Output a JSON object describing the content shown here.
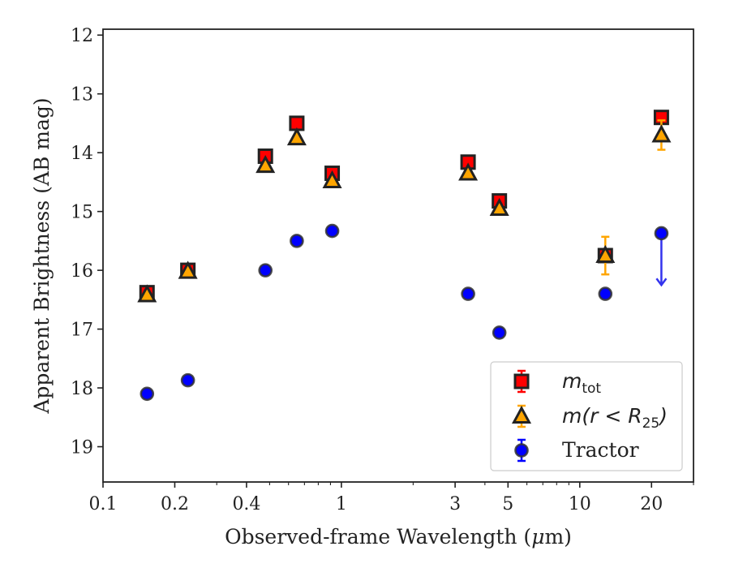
{
  "chart_data": {
    "type": "scatter",
    "xlabel_prefix": "Observed-frame Wavelength (",
    "xlabel_symbol": "μ",
    "xlabel_suffix": "m)",
    "ylabel": "Apparent Brightness (AB mag)",
    "x_scale": "log",
    "xlim": [
      0.1,
      30
    ],
    "ylim": [
      19.6,
      11.9
    ],
    "y_inverted": true,
    "x_ticks": [
      0.1,
      0.2,
      0.4,
      1,
      3,
      5,
      10,
      20
    ],
    "x_tick_labels": [
      "0.1",
      "0.2",
      "0.4",
      "1",
      "3",
      "5",
      "10",
      "20"
    ],
    "y_ticks": [
      12,
      13,
      14,
      15,
      16,
      17,
      18,
      19
    ],
    "y_tick_labels": [
      "12",
      "13",
      "14",
      "15",
      "16",
      "17",
      "18",
      "19"
    ],
    "legend_position": "lower-right",
    "series": [
      {
        "key": "mtot",
        "name_main": "m",
        "name_sub": "tot",
        "name_tail": "",
        "marker": "square",
        "color": "#ff0000",
        "edge": "#222222",
        "errcolor": "#ff0000",
        "x": [
          0.153,
          0.227,
          0.48,
          0.65,
          0.915,
          3.4,
          4.6,
          12.8,
          22.0
        ],
        "y": [
          16.38,
          16.0,
          14.06,
          13.5,
          14.35,
          14.16,
          14.82,
          15.75,
          13.4
        ],
        "yerr": [
          0.04,
          0.03,
          0.03,
          0.03,
          0.03,
          0.03,
          0.04,
          0.05,
          0.04
        ]
      },
      {
        "key": "mr25",
        "name_main": "m(r < R",
        "name_sub": "25",
        "name_tail": ")",
        "marker": "triangle",
        "color": "#ffa500",
        "edge": "#222222",
        "errcolor": "#ffa500",
        "x": [
          0.153,
          0.227,
          0.48,
          0.65,
          0.915,
          3.4,
          4.6,
          12.8,
          22.0
        ],
        "y": [
          16.42,
          16.02,
          14.22,
          13.75,
          14.48,
          14.35,
          14.95,
          15.75,
          13.7
        ],
        "yerr": [
          0.04,
          0.03,
          0.03,
          0.03,
          0.03,
          0.03,
          0.04,
          0.32,
          0.25
        ]
      },
      {
        "key": "tractor",
        "name_main": "Tractor",
        "name_sub": "",
        "name_tail": "",
        "marker": "circle",
        "color": "#0000ff",
        "edge": "#333333",
        "errcolor": "#0000ff",
        "x": [
          0.153,
          0.227,
          0.48,
          0.65,
          0.915,
          3.4,
          4.6,
          12.8,
          22.0
        ],
        "y": [
          18.1,
          17.87,
          16.0,
          15.5,
          15.33,
          16.4,
          17.06,
          16.4,
          15.37
        ],
        "yerr": [
          0.06,
          0.06,
          0.05,
          0.05,
          0.05,
          0.06,
          0.06,
          0.06,
          0.0
        ],
        "upper_limit_index": 8,
        "upper_limit_to": 16.25
      }
    ]
  }
}
